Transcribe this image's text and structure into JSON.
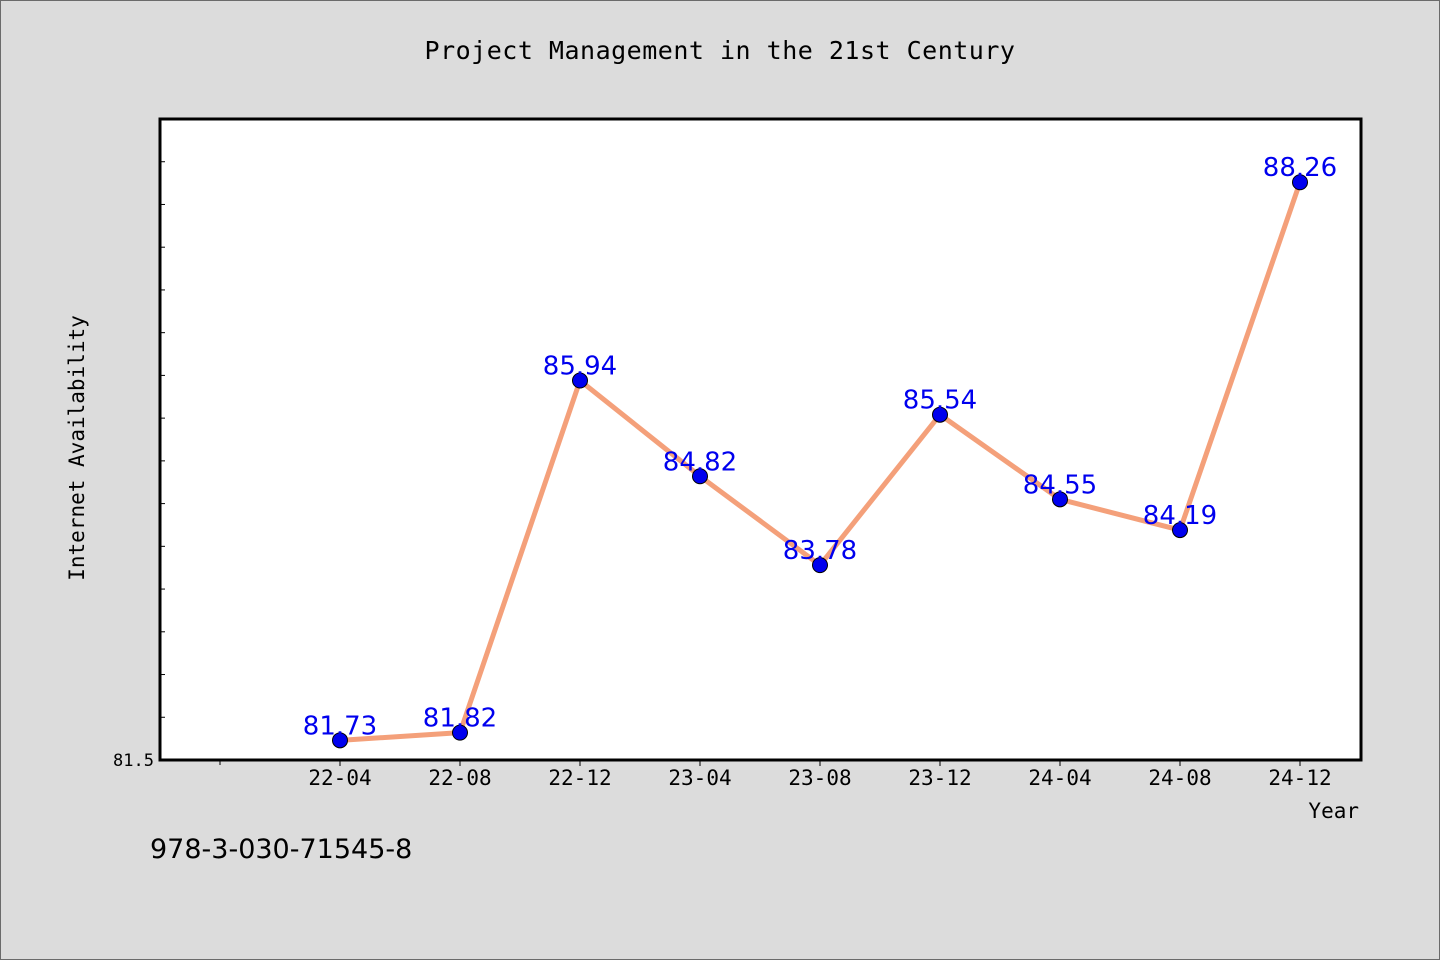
{
  "chart_title": "Project Management in the 21st Century",
  "footer_code": "978-3-030-71545-8",
  "colors": {
    "background": "#dcdcdc",
    "plot_background": "#ffffff",
    "line": "#f4a07a",
    "marker": "#0000ee",
    "data_label": "#0000ee"
  },
  "chart_data": {
    "type": "line",
    "title": "Project Management in the 21st Century",
    "xlabel": "Year",
    "ylabel": "Internet Availability",
    "categories": [
      "22-04",
      "22-08",
      "22-12",
      "23-04",
      "23-08",
      "23-12",
      "24-04",
      "24-08",
      "24-12"
    ],
    "values": [
      81.73,
      81.82,
      85.94,
      84.82,
      83.78,
      85.54,
      84.55,
      84.19,
      88.26
    ],
    "data_labels": [
      "81.73",
      "81.82",
      "85.94",
      "84.82",
      "83.78",
      "85.54",
      "84.55",
      "84.19",
      "88.26"
    ],
    "ylim": [
      81.5,
      89.0
    ],
    "y_tick_labels": [
      "81.5"
    ],
    "grid": false,
    "legend": "none"
  }
}
